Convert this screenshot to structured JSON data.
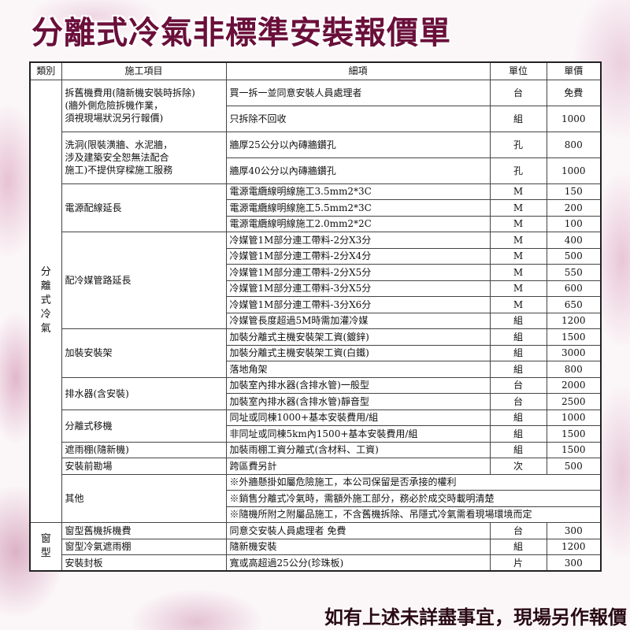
{
  "title": "分離式冷氣非標準安裝報價單",
  "footer": "如有上述未詳盡事宜，現場另作報價",
  "headers": {
    "category": "類別",
    "item": "施工項目",
    "detail": "細項",
    "unit": "單位",
    "price": "單價"
  },
  "categories": [
    {
      "name": "分\n離\n式\n冷\n氣",
      "groups": [
        {
          "label": "拆舊機費用(隨新機安裝時拆除)\n(牆外側危險拆機作業，\n須視現場狀況另行報價)",
          "tall": true,
          "rows": [
            {
              "detail": "買一拆一並同意安裝人員處理者",
              "unit": "台",
              "price": "免費"
            },
            {
              "detail": "只拆除不回收",
              "unit": "組",
              "price": "1000"
            }
          ]
        },
        {
          "label": "洗洞(限裝潢牆、水泥牆，\n涉及建築安全恕無法配合\n施工)不提供穿樑施工服務",
          "tall": true,
          "rows": [
            {
              "detail": "牆厚25公分以內磚牆鑽孔",
              "unit": "孔",
              "price": "800"
            },
            {
              "detail": "牆厚40公分以內磚牆鑽孔",
              "unit": "孔",
              "price": "1000"
            }
          ]
        },
        {
          "label": "電源配線延長",
          "rows": [
            {
              "detail": "電源電纜線明線施工3.5mm2*3C",
              "unit": "M",
              "price": "150"
            },
            {
              "detail": "電源電纜線明線施工5.5mm2*3C",
              "unit": "M",
              "price": "200"
            },
            {
              "detail": "電源電纜線明線施工2.0mm2*2C",
              "unit": "M",
              "price": "100"
            }
          ]
        },
        {
          "label": "配冷媒管路延長",
          "rows": [
            {
              "detail": "冷媒管1M部分連工帶料-2分X3分",
              "unit": "M",
              "price": "400"
            },
            {
              "detail": "冷媒管1M部分連工帶料-2分X4分",
              "unit": "M",
              "price": "500"
            },
            {
              "detail": "冷媒管1M部分連工帶料-2分X5分",
              "unit": "M",
              "price": "550"
            },
            {
              "detail": "冷媒管1M部分連工帶料-3分X5分",
              "unit": "M",
              "price": "600"
            },
            {
              "detail": "冷媒管1M部分連工帶料-3分X6分",
              "unit": "M",
              "price": "650"
            },
            {
              "detail": "冷媒管長度超過5M時需加灌冷媒",
              "unit": "組",
              "price": "1200"
            }
          ]
        },
        {
          "label": "加裝安裝架",
          "rows": [
            {
              "detail": "加裝分離式主機安裝架工資(鍍鋅)",
              "unit": "組",
              "price": "1500"
            },
            {
              "detail": "加裝分離式主機安裝架工資(白鐵)",
              "unit": "組",
              "price": "3000"
            },
            {
              "detail": "落地角架",
              "unit": "組",
              "price": "800"
            }
          ]
        },
        {
          "label": "排水器(含安裝)",
          "rows": [
            {
              "detail": "加裝室內排水器(含排水管)一般型",
              "unit": "台",
              "price": "2000"
            },
            {
              "detail": "加裝室內排水器(含排水管)靜音型",
              "unit": "台",
              "price": "2500"
            }
          ]
        },
        {
          "label": "分離式移機",
          "rows": [
            {
              "detail": "同址或同棟1000+基本安裝費用/組",
              "unit": "組",
              "price": "1000"
            },
            {
              "detail": "非同址或同棟5km內1500+基本安裝費用/組",
              "unit": "組",
              "price": "1500"
            }
          ]
        },
        {
          "label": "遮雨棚(隨新機)",
          "rows": [
            {
              "detail": "加裝雨棚工資分離式(含材料、工資)",
              "unit": "組",
              "price": "1500"
            }
          ]
        },
        {
          "label": "安裝前勘場",
          "rows": [
            {
              "detail": "跨區費另計",
              "unit": "次",
              "price": "500"
            }
          ]
        },
        {
          "label": "其他",
          "rows": [
            {
              "note": "※外牆懸掛如屬危險施工，本公司保留是否承接的權利"
            },
            {
              "note": "※銷售分離式冷氣時，需額外施工部分，務必於成交時載明清楚"
            },
            {
              "note": "※隨機所附之附屬品施工，不含舊機拆除、吊隱式冷氣需看現場環境而定"
            }
          ]
        }
      ]
    },
    {
      "name": "窗\n型",
      "groups": [
        {
          "label": "窗型舊機拆機費",
          "rows": [
            {
              "detail": "同意交安裝人員處理者 免費",
              "unit": "台",
              "price": "300"
            }
          ]
        },
        {
          "label": "窗型冷氣遮雨棚",
          "rows": [
            {
              "detail": "隨新機安裝",
              "unit": "組",
              "price": "1200"
            }
          ]
        },
        {
          "label": "安裝封板",
          "rows": [
            {
              "detail": "寬或高超過25公分(珍珠板)",
              "unit": "片",
              "price": "300"
            }
          ]
        }
      ]
    }
  ]
}
